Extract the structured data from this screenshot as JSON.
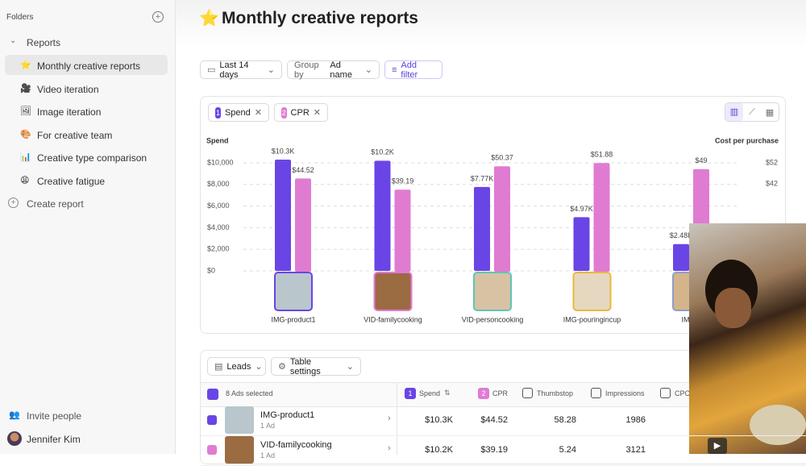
{
  "sidebar": {
    "title": "Folders",
    "section": "Reports",
    "items": [
      {
        "icon": "⭐",
        "label": "Monthly creative reports"
      },
      {
        "icon": "🎥",
        "label": "Video iteration"
      },
      {
        "icon": "🖼",
        "label": "Image iteration"
      },
      {
        "icon": "🎨",
        "label": "For creative team"
      },
      {
        "icon": "📊",
        "label": "Creative type comparison"
      },
      {
        "icon": "😩",
        "label": "Creative fatigue"
      }
    ],
    "create": "Create report",
    "invite": "Invite people",
    "user": "Jennifer Kim"
  },
  "header": {
    "icon": "⭐",
    "title": "Monthly creative reports"
  },
  "toolbar": {
    "date": "Last 14 days",
    "group_prefix": "Group by",
    "group_value": "Ad name",
    "filter": "Add filter"
  },
  "chart_panel": {
    "metric_indices": [
      "1",
      "2"
    ]
  },
  "chart_data": {
    "type": "bar",
    "y_label": "Spend",
    "y2_label": "Cost per purchase",
    "categories": [
      "IMG-product1",
      "VID-familycooking",
      "VID-personcooking",
      "IMG-pouringincup",
      "IMG-p"
    ],
    "series": [
      {
        "name": "Spend",
        "color": "#6a45e6",
        "values": [
          10300,
          10200,
          7770,
          4970,
          2480
        ],
        "value_labels": [
          "$10.3K",
          "$10.2K",
          "$7.77K",
          "$4.97K",
          "$2.48K"
        ]
      },
      {
        "name": "CPR",
        "color": "#e07bd2",
        "axis": "y2",
        "values": [
          44.52,
          39.19,
          50.37,
          51.88,
          49
        ],
        "value_labels": [
          "$44.52",
          "$39.19",
          "$50.37",
          "$51.88",
          "$49"
        ]
      }
    ],
    "ylim": [
      0,
      10000
    ],
    "yticks": [
      {
        "value": 0,
        "label": "$0"
      },
      {
        "value": 2000,
        "label": "$2,000"
      },
      {
        "value": 4000,
        "label": "$4,000"
      },
      {
        "value": 6000,
        "label": "$6,000"
      },
      {
        "value": 8000,
        "label": "$8,000"
      },
      {
        "value": 10000,
        "label": "$10,000"
      }
    ],
    "y2lim": [
      0,
      52
    ],
    "y2ticks": [
      {
        "value": 42,
        "label": "$42"
      },
      {
        "value": 52,
        "label": "$52"
      }
    ],
    "grid": true
  },
  "table": {
    "view": "Leads",
    "settings": "Table settings",
    "selected": "8 Ads selected",
    "columns": [
      {
        "index": "1",
        "label": "Spend"
      },
      {
        "index": "2",
        "label": "CPR"
      },
      {
        "label": "Thumbstop"
      },
      {
        "label": "Impressions"
      },
      {
        "label": "CPC"
      }
    ],
    "rows": [
      {
        "name": "IMG-product1",
        "sub": "1 Ad",
        "cells": [
          "$10.3K",
          "$44.52",
          "58.28",
          "1986"
        ]
      },
      {
        "name": "VID-familycooking",
        "sub": "1 Ad",
        "cells": [
          "$10.2K",
          "$39.19",
          "5.24",
          "3121"
        ]
      }
    ]
  }
}
